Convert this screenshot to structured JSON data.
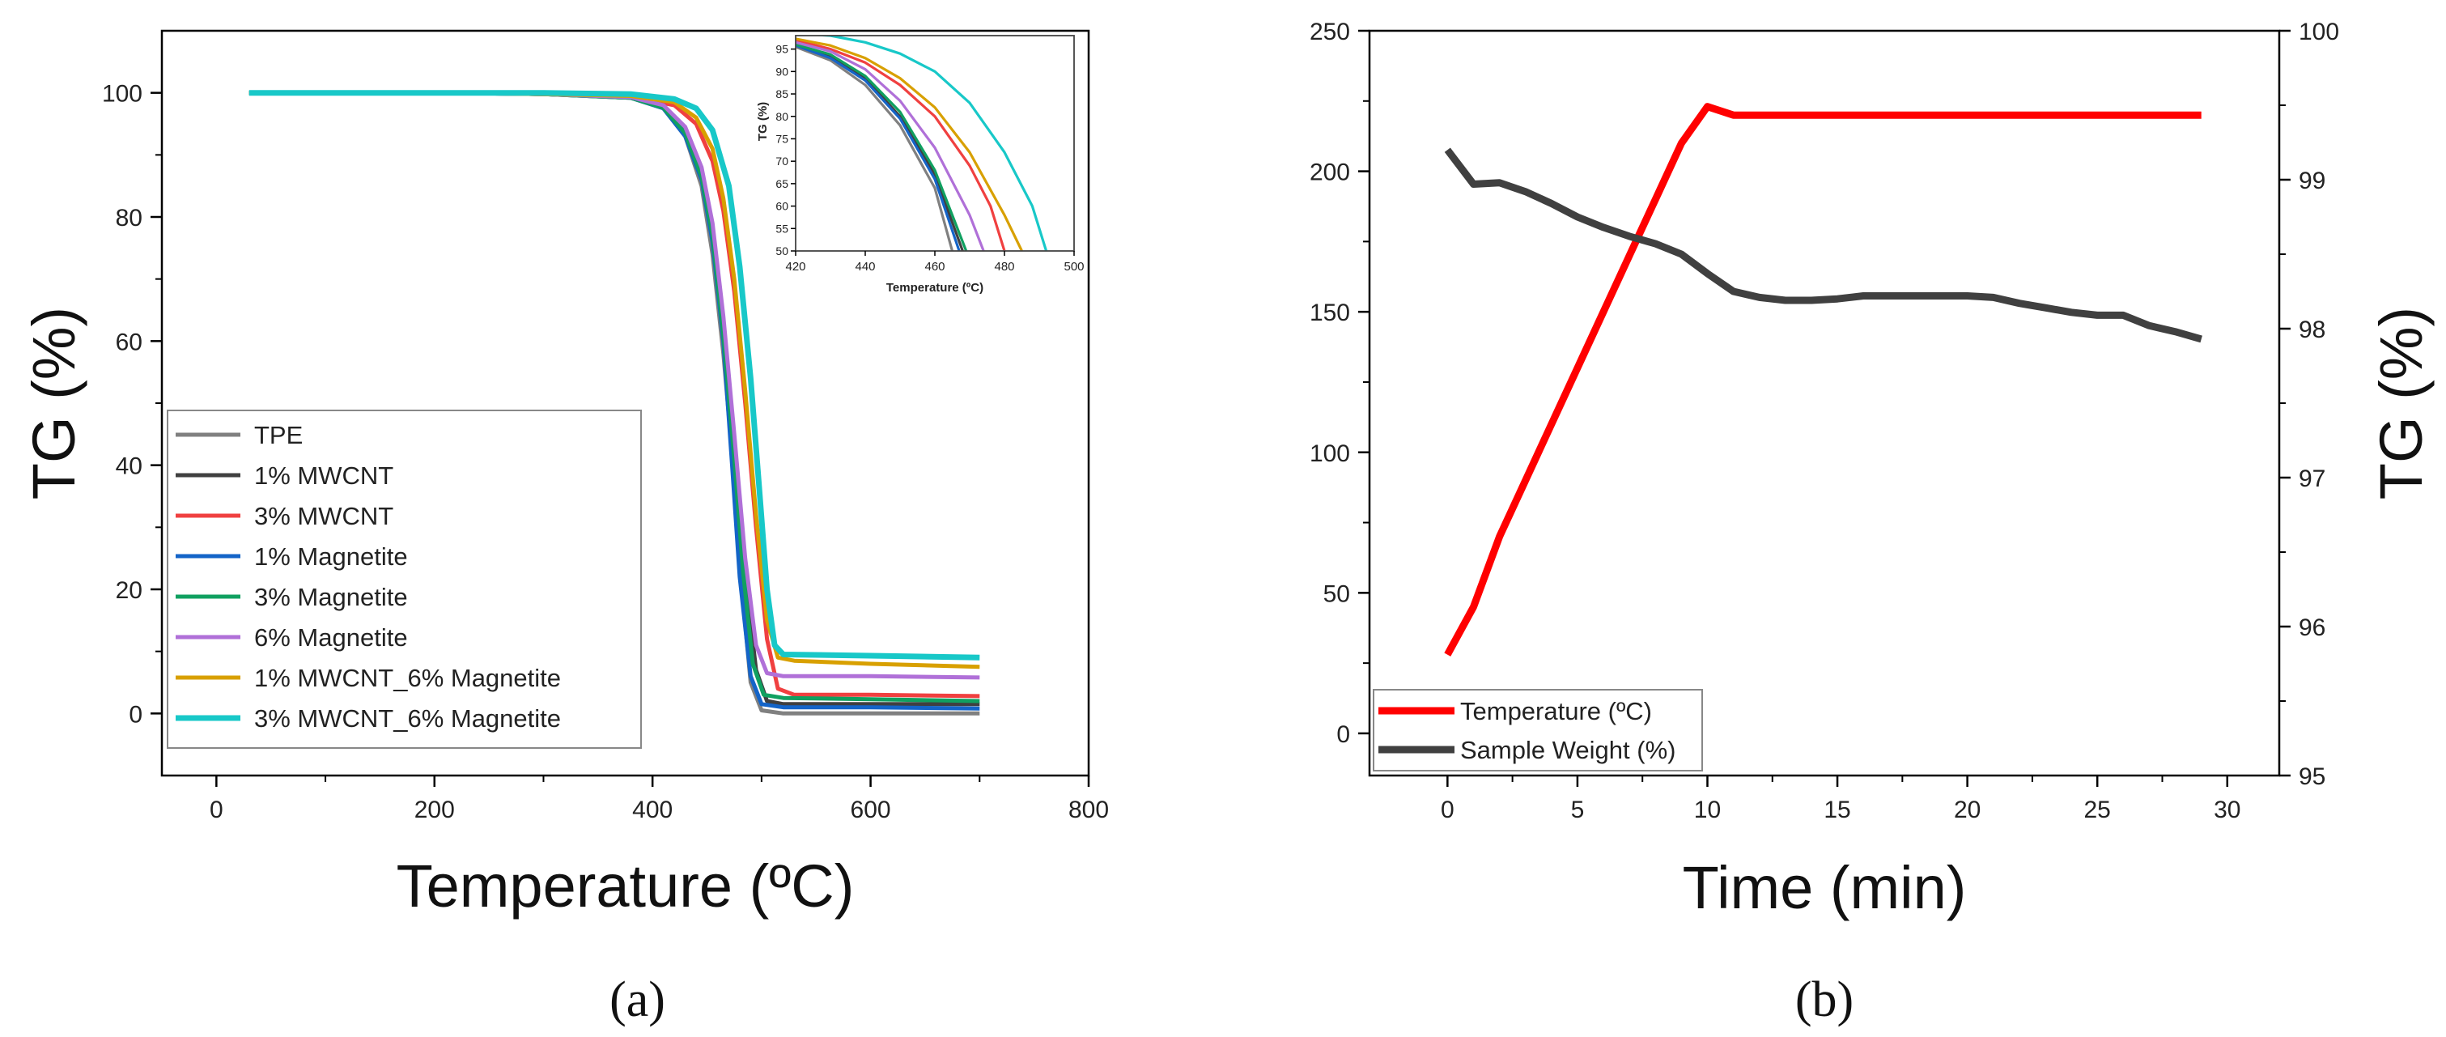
{
  "colors": {
    "tpe": "#808080",
    "mwcnt1": "#404040",
    "mwcnt3": "#f04040",
    "mag1": "#1464c8",
    "mag3": "#10a060",
    "mag6": "#b070d8",
    "mw1mag6": "#d8a000",
    "mw3mag6": "#18c8c8",
    "temperature": "#ff0000",
    "weight": "#404040"
  },
  "chart_data": [
    {
      "id": "a",
      "type": "line",
      "caption": "(a)",
      "xlabel": "Temperature (ºC)",
      "ylabel": "TG (%)",
      "xlim": [
        -50,
        800
      ],
      "ylim": [
        -10,
        110
      ],
      "xticks": [
        "0",
        "200",
        "400",
        "600",
        "800"
      ],
      "yticks": [
        "0",
        "20",
        "40",
        "60",
        "80",
        "100"
      ],
      "legend_position": "bottom-left",
      "series": [
        {
          "name": "TPE",
          "color_key": "tpe",
          "x": [
            30,
            100,
            200,
            300,
            380,
            410,
            430,
            445,
            455,
            465,
            475,
            482,
            490,
            500,
            520,
            600,
            700
          ],
          "y": [
            100,
            100,
            100,
            99.8,
            99.2,
            97.5,
            93,
            85,
            74,
            58,
            38,
            20,
            5,
            0.5,
            0,
            0,
            0
          ]
        },
        {
          "name": "1% MWCNT",
          "color_key": "mwcnt1",
          "x": [
            30,
            100,
            200,
            300,
            380,
            410,
            430,
            445,
            455,
            465,
            475,
            485,
            495,
            505,
            520,
            600,
            700
          ],
          "y": [
            100,
            100,
            100,
            99.8,
            99.3,
            98,
            94,
            87,
            77,
            62,
            42,
            22,
            7,
            2,
            1.5,
            1.5,
            1.5
          ]
        },
        {
          "name": "3% MWCNT",
          "color_key": "mwcnt3",
          "x": [
            30,
            100,
            200,
            300,
            380,
            420,
            440,
            455,
            465,
            475,
            485,
            495,
            505,
            515,
            530,
            600,
            700
          ],
          "y": [
            100,
            100,
            100,
            99.8,
            99.4,
            98,
            95,
            89,
            81,
            68,
            50,
            30,
            12,
            4,
            3,
            3,
            2.8
          ]
        },
        {
          "name": "1% Magnetite",
          "color_key": "mag1",
          "x": [
            30,
            100,
            200,
            300,
            380,
            410,
            430,
            445,
            455,
            465,
            473,
            480,
            490,
            500,
            520,
            600,
            700
          ],
          "y": [
            100,
            100,
            100,
            99.8,
            99.2,
            97.5,
            93,
            86,
            76,
            60,
            40,
            22,
            6,
            1.5,
            1,
            1,
            0.8
          ]
        },
        {
          "name": "3% Magnetite",
          "color_key": "mag3",
          "x": [
            30,
            100,
            200,
            300,
            380,
            410,
            430,
            445,
            455,
            465,
            475,
            483,
            492,
            502,
            520,
            600,
            700
          ],
          "y": [
            100,
            100,
            100,
            99.8,
            99.2,
            97.6,
            93.5,
            86.5,
            77,
            61,
            41,
            23,
            8,
            3,
            2.5,
            2.3,
            2
          ]
        },
        {
          "name": "6% Magnetite",
          "color_key": "mag6",
          "x": [
            30,
            100,
            200,
            300,
            380,
            410,
            430,
            445,
            455,
            465,
            475,
            485,
            495,
            505,
            520,
            600,
            700
          ],
          "y": [
            100,
            100,
            100,
            99.8,
            99.3,
            98,
            94.5,
            88,
            79,
            64,
            45,
            25,
            11,
            6.5,
            6,
            6,
            5.8
          ]
        },
        {
          "name": "1% MWCNT_6% Magnetite",
          "color_key": "mw1mag6",
          "x": [
            30,
            100,
            200,
            300,
            380,
            420,
            440,
            455,
            465,
            475,
            485,
            495,
            505,
            515,
            530,
            600,
            700
          ],
          "y": [
            100,
            100,
            100,
            99.8,
            99.5,
            98.5,
            96,
            91,
            83,
            70,
            52,
            32,
            15,
            9,
            8.5,
            8,
            7.5
          ]
        },
        {
          "name": "3% MWCNT_6% Magnetite",
          "color_key": "mw3mag6",
          "x": [
            30,
            100,
            200,
            300,
            380,
            420,
            440,
            455,
            470,
            480,
            490,
            498,
            505,
            512,
            520,
            600,
            700
          ],
          "y": [
            100,
            100,
            100,
            100,
            99.8,
            99,
            97.5,
            94,
            85,
            72,
            54,
            36,
            20,
            11,
            9.5,
            9.3,
            9
          ]
        }
      ],
      "inset": {
        "xlabel": "Temperature (ºC)",
        "ylabel": "TG (%)",
        "xlim": [
          420,
          500
        ],
        "ylim": [
          50,
          98
        ],
        "xticks": [
          "420",
          "440",
          "460",
          "480",
          "500"
        ],
        "yticks": [
          "50",
          "55",
          "60",
          "65",
          "70",
          "75",
          "80",
          "85",
          "90",
          "95"
        ],
        "series": [
          {
            "color_key": "tpe",
            "x": [
              420,
              430,
              440,
              450,
              460,
              465
            ],
            "y": [
              95.5,
              92.5,
              87,
              78,
              64,
              50
            ]
          },
          {
            "color_key": "mwcnt1",
            "x": [
              420,
              430,
              440,
              450,
              460,
              468
            ],
            "y": [
              96,
              93.5,
              88.5,
              80,
              67,
              50
            ]
          },
          {
            "color_key": "mwcnt3",
            "x": [
              420,
              430,
              440,
              450,
              460,
              470,
              476,
              480
            ],
            "y": [
              97,
              95,
              92,
              87,
              80,
              69,
              60,
              50
            ]
          },
          {
            "color_key": "mag1",
            "x": [
              420,
              430,
              440,
              450,
              460,
              467
            ],
            "y": [
              95.8,
              93,
              88,
              79.5,
              66,
              50
            ]
          },
          {
            "color_key": "mag3",
            "x": [
              420,
              430,
              440,
              450,
              460,
              469
            ],
            "y": [
              96,
              93.8,
              89,
              81,
              68,
              50
            ]
          },
          {
            "color_key": "mag6",
            "x": [
              420,
              430,
              440,
              450,
              460,
              470,
              474
            ],
            "y": [
              96.5,
              94.5,
              90.5,
              83.5,
              73,
              58,
              50
            ]
          },
          {
            "color_key": "mw1mag6",
            "x": [
              420,
              430,
              440,
              450,
              460,
              470,
              480,
              485
            ],
            "y": [
              97.3,
              95.8,
              93,
              88.5,
              82,
              72,
              58,
              50
            ]
          },
          {
            "color_key": "mw3mag6",
            "x": [
              420,
              430,
              440,
              450,
              460,
              470,
              480,
              488,
              492
            ],
            "y": [
              98.5,
              98,
              96.5,
              94,
              90,
              83,
              72,
              60,
              50
            ]
          }
        ]
      }
    },
    {
      "id": "b",
      "type": "line",
      "caption": "(b)",
      "xlabel": "Time (min)",
      "ylabel_left": "",
      "ylabel_right": "TG (%)",
      "xlim": [
        -3,
        32
      ],
      "ylim_left": [
        -15,
        250
      ],
      "ylim_right": [
        95,
        100
      ],
      "xticks": [
        "0",
        "5",
        "10",
        "15",
        "20",
        "25",
        "30"
      ],
      "yticks_left": [
        "0",
        "50",
        "100",
        "150",
        "200",
        "250"
      ],
      "yticks_right": [
        "95",
        "96",
        "97",
        "98",
        "99",
        "100"
      ],
      "legend_position": "bottom-left",
      "series": [
        {
          "name": "Temperature (ºC)",
          "axis": "left",
          "color_key": "temperature",
          "x": [
            0,
            1,
            2,
            3,
            4,
            5,
            6,
            7,
            8,
            9,
            10,
            11,
            12,
            13,
            15,
            20,
            25,
            29
          ],
          "y": [
            28,
            45,
            70,
            90,
            110,
            130,
            150,
            170,
            190,
            210,
            223,
            220,
            220,
            220,
            220,
            220,
            220,
            220
          ]
        },
        {
          "name": "Sample Weight (%)",
          "axis": "right",
          "color_key": "weight",
          "x": [
            0,
            1,
            2,
            3,
            4,
            5,
            6,
            7,
            8,
            9,
            10,
            11,
            12,
            13,
            14,
            15,
            16,
            17,
            18,
            19,
            20,
            21,
            22,
            23,
            24,
            25,
            26,
            27,
            28,
            29
          ],
          "y": [
            99.2,
            98.97,
            98.98,
            98.92,
            98.84,
            98.75,
            98.68,
            98.62,
            98.57,
            98.5,
            98.37,
            98.25,
            98.21,
            98.19,
            98.19,
            98.2,
            98.22,
            98.22,
            98.22,
            98.22,
            98.22,
            98.21,
            98.17,
            98.14,
            98.11,
            98.09,
            98.09,
            98.02,
            97.98,
            97.93
          ]
        }
      ]
    }
  ]
}
